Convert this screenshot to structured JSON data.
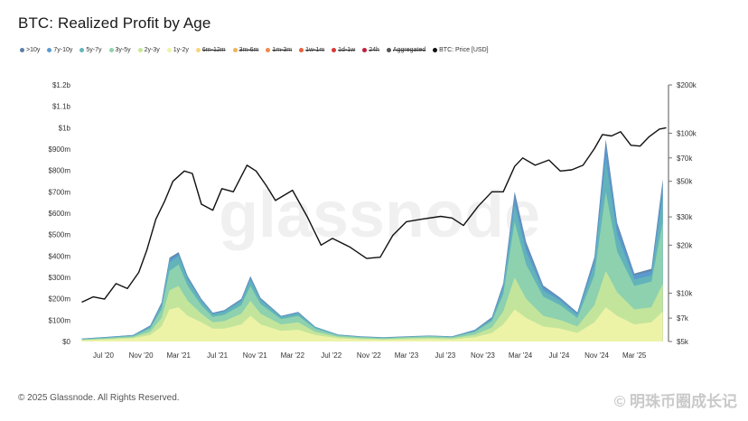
{
  "title": "BTC: Realized Profit by Age",
  "footer": "© 2025 Glassnode. All Rights Reserved.",
  "watermark": "glassnode",
  "watermark_bottom": "© 明珠币圈成长记",
  "legend": [
    {
      "label": ">10y",
      "color": "#5b7fa6",
      "struck": false
    },
    {
      "label": "7y-10y",
      "color": "#5a9bd0",
      "struck": false
    },
    {
      "label": "5y-7y",
      "color": "#64b4b8",
      "struck": false
    },
    {
      "label": "3y-5y",
      "color": "#8fd3ae",
      "struck": false
    },
    {
      "label": "2y-3y",
      "color": "#c6e69a",
      "struck": false
    },
    {
      "label": "1y-2y",
      "color": "#eef3a8",
      "struck": false
    },
    {
      "label": "6m-12m",
      "color": "#f6d57e",
      "struck": true
    },
    {
      "label": "3m-6m",
      "color": "#f2b25a",
      "struck": true
    },
    {
      "label": "1m-3m",
      "color": "#ee8a4a",
      "struck": true
    },
    {
      "label": "1w-1m",
      "color": "#e8603c",
      "struck": true
    },
    {
      "label": "1d-1w",
      "color": "#d93a38",
      "struck": true
    },
    {
      "label": "24h",
      "color": "#c21f3a",
      "struck": true
    },
    {
      "label": "Aggregated",
      "color": "#555555",
      "struck": true
    },
    {
      "label": "BTC: Price [USD]",
      "color": "#111111",
      "struck": false
    }
  ],
  "chart_data": {
    "type": "area",
    "x_ticks": [
      "Jul '20",
      "Nov '20",
      "Mar '21",
      "Jul '21",
      "Nov '21",
      "Mar '22",
      "Jul '22",
      "Nov '22",
      "Mar '23",
      "Jul '23",
      "Nov '23",
      "Mar '24",
      "Jul '24",
      "Nov '24",
      "Mar '25"
    ],
    "y_left_ticks": [
      "$0",
      "$100m",
      "$200m",
      "$300m",
      "$400m",
      "$500m",
      "$600m",
      "$700m",
      "$800m",
      "$900m",
      "$1b",
      "$1.1b",
      "$1.2b"
    ],
    "y_left_range": [
      0,
      1200000000
    ],
    "y_right_ticks": [
      "$5k",
      "$7k",
      "$10k",
      "$20k",
      "$30k",
      "$50k",
      "$70k",
      "$100k",
      "$200k"
    ],
    "y_right_range": [
      5000,
      200000
    ],
    "y_right_scale": "log",
    "x_range_months": [
      2020.33,
      2025.5
    ],
    "series": [
      {
        "name": "1y-2y",
        "color": "#eef3a8",
        "points": [
          [
            2020.35,
            5
          ],
          [
            2020.6,
            10
          ],
          [
            2020.8,
            15
          ],
          [
            2020.95,
            30
          ],
          [
            2021.05,
            70
          ],
          [
            2021.12,
            150
          ],
          [
            2021.2,
            160
          ],
          [
            2021.28,
            120
          ],
          [
            2021.4,
            90
          ],
          [
            2021.5,
            60
          ],
          [
            2021.6,
            60
          ],
          [
            2021.75,
            80
          ],
          [
            2021.83,
            120
          ],
          [
            2021.92,
            80
          ],
          [
            2022.1,
            50
          ],
          [
            2022.25,
            55
          ],
          [
            2022.4,
            30
          ],
          [
            2022.6,
            15
          ],
          [
            2022.8,
            10
          ],
          [
            2023.0,
            8
          ],
          [
            2023.2,
            10
          ],
          [
            2023.4,
            12
          ],
          [
            2023.6,
            10
          ],
          [
            2023.8,
            20
          ],
          [
            2023.95,
            40
          ],
          [
            2024.05,
            80
          ],
          [
            2024.15,
            150
          ],
          [
            2024.25,
            110
          ],
          [
            2024.4,
            70
          ],
          [
            2024.55,
            60
          ],
          [
            2024.7,
            40
          ],
          [
            2024.85,
            90
          ],
          [
            2024.95,
            160
          ],
          [
            2025.05,
            120
          ],
          [
            2025.2,
            80
          ],
          [
            2025.35,
            90
          ],
          [
            2025.45,
            140
          ]
        ]
      },
      {
        "name": "2y-3y",
        "color": "#c6e69a",
        "points": [
          [
            2020.35,
            8
          ],
          [
            2020.6,
            14
          ],
          [
            2020.8,
            20
          ],
          [
            2020.95,
            45
          ],
          [
            2021.05,
            110
          ],
          [
            2021.12,
            240
          ],
          [
            2021.2,
            260
          ],
          [
            2021.28,
            190
          ],
          [
            2021.4,
            130
          ],
          [
            2021.5,
            90
          ],
          [
            2021.6,
            95
          ],
          [
            2021.75,
            130
          ],
          [
            2021.83,
            190
          ],
          [
            2021.92,
            130
          ],
          [
            2022.1,
            80
          ],
          [
            2022.25,
            90
          ],
          [
            2022.4,
            45
          ],
          [
            2022.6,
            22
          ],
          [
            2022.8,
            15
          ],
          [
            2023.0,
            12
          ],
          [
            2023.2,
            16
          ],
          [
            2023.4,
            18
          ],
          [
            2023.6,
            15
          ],
          [
            2023.8,
            32
          ],
          [
            2023.95,
            65
          ],
          [
            2024.05,
            140
          ],
          [
            2024.15,
            300
          ],
          [
            2024.25,
            200
          ],
          [
            2024.4,
            120
          ],
          [
            2024.55,
            100
          ],
          [
            2024.7,
            70
          ],
          [
            2024.85,
            170
          ],
          [
            2024.95,
            330
          ],
          [
            2025.05,
            230
          ],
          [
            2025.2,
            150
          ],
          [
            2025.35,
            160
          ],
          [
            2025.45,
            270
          ]
        ]
      },
      {
        "name": "3y-5y",
        "color": "#8fd3ae",
        "points": [
          [
            2020.35,
            10
          ],
          [
            2020.6,
            18
          ],
          [
            2020.8,
            25
          ],
          [
            2020.95,
            60
          ],
          [
            2021.05,
            150
          ],
          [
            2021.12,
            330
          ],
          [
            2021.2,
            360
          ],
          [
            2021.28,
            260
          ],
          [
            2021.4,
            170
          ],
          [
            2021.5,
            115
          ],
          [
            2021.6,
            125
          ],
          [
            2021.75,
            170
          ],
          [
            2021.83,
            260
          ],
          [
            2021.92,
            175
          ],
          [
            2022.1,
            105
          ],
          [
            2022.25,
            120
          ],
          [
            2022.4,
            60
          ],
          [
            2022.6,
            28
          ],
          [
            2022.8,
            20
          ],
          [
            2023.0,
            16
          ],
          [
            2023.2,
            20
          ],
          [
            2023.4,
            24
          ],
          [
            2023.6,
            20
          ],
          [
            2023.8,
            45
          ],
          [
            2023.95,
            95
          ],
          [
            2024.05,
            220
          ],
          [
            2024.15,
            560
          ],
          [
            2024.25,
            360
          ],
          [
            2024.4,
            210
          ],
          [
            2024.55,
            170
          ],
          [
            2024.7,
            110
          ],
          [
            2024.85,
            310
          ],
          [
            2024.95,
            700
          ],
          [
            2025.05,
            420
          ],
          [
            2025.2,
            260
          ],
          [
            2025.35,
            280
          ],
          [
            2025.45,
            560
          ]
        ]
      },
      {
        "name": "5y-7y",
        "color": "#64b4b8",
        "points": [
          [
            2020.35,
            12
          ],
          [
            2020.6,
            20
          ],
          [
            2020.8,
            28
          ],
          [
            2020.95,
            68
          ],
          [
            2021.05,
            170
          ],
          [
            2021.12,
            370
          ],
          [
            2021.2,
            400
          ],
          [
            2021.28,
            290
          ],
          [
            2021.4,
            190
          ],
          [
            2021.5,
            128
          ],
          [
            2021.6,
            140
          ],
          [
            2021.75,
            190
          ],
          [
            2021.83,
            290
          ],
          [
            2021.92,
            195
          ],
          [
            2022.1,
            115
          ],
          [
            2022.25,
            132
          ],
          [
            2022.4,
            66
          ],
          [
            2022.6,
            31
          ],
          [
            2022.8,
            22
          ],
          [
            2023.0,
            18
          ],
          [
            2023.2,
            22
          ],
          [
            2023.4,
            26
          ],
          [
            2023.6,
            22
          ],
          [
            2023.8,
            50
          ],
          [
            2023.95,
            105
          ],
          [
            2024.05,
            250
          ],
          [
            2024.15,
            640
          ],
          [
            2024.25,
            420
          ],
          [
            2024.4,
            240
          ],
          [
            2024.55,
            190
          ],
          [
            2024.7,
            125
          ],
          [
            2024.85,
            360
          ],
          [
            2024.95,
            850
          ],
          [
            2025.05,
            500
          ],
          [
            2025.2,
            290
          ],
          [
            2025.35,
            310
          ],
          [
            2025.45,
            680
          ]
        ]
      },
      {
        "name": "7y-10y",
        "color": "#5a9bd0",
        "points": [
          [
            2020.35,
            13
          ],
          [
            2020.6,
            22
          ],
          [
            2020.8,
            30
          ],
          [
            2020.95,
            72
          ],
          [
            2021.05,
            178
          ],
          [
            2021.12,
            385
          ],
          [
            2021.2,
            410
          ],
          [
            2021.28,
            300
          ],
          [
            2021.4,
            196
          ],
          [
            2021.5,
            132
          ],
          [
            2021.6,
            144
          ],
          [
            2021.75,
            196
          ],
          [
            2021.83,
            300
          ],
          [
            2021.92,
            200
          ],
          [
            2022.1,
            118
          ],
          [
            2022.25,
            136
          ],
          [
            2022.4,
            68
          ],
          [
            2022.6,
            32
          ],
          [
            2022.8,
            23
          ],
          [
            2023.0,
            19
          ],
          [
            2023.2,
            23
          ],
          [
            2023.4,
            27
          ],
          [
            2023.6,
            23
          ],
          [
            2023.8,
            53
          ],
          [
            2023.95,
            110
          ],
          [
            2024.05,
            265
          ],
          [
            2024.15,
            680
          ],
          [
            2024.25,
            450
          ],
          [
            2024.4,
            255
          ],
          [
            2024.55,
            200
          ],
          [
            2024.7,
            132
          ],
          [
            2024.85,
            385
          ],
          [
            2024.95,
            920
          ],
          [
            2025.05,
            540
          ],
          [
            2025.2,
            310
          ],
          [
            2025.35,
            330
          ],
          [
            2025.45,
            740
          ]
        ]
      },
      {
        "name": ">10y",
        "color": "#5b7fa6",
        "points": [
          [
            2020.35,
            14
          ],
          [
            2020.6,
            23
          ],
          [
            2020.8,
            31
          ],
          [
            2020.95,
            75
          ],
          [
            2021.05,
            182
          ],
          [
            2021.12,
            392
          ],
          [
            2021.2,
            418
          ],
          [
            2021.28,
            305
          ],
          [
            2021.4,
            200
          ],
          [
            2021.5,
            135
          ],
          [
            2021.6,
            147
          ],
          [
            2021.75,
            200
          ],
          [
            2021.83,
            306
          ],
          [
            2021.92,
            204
          ],
          [
            2022.1,
            120
          ],
          [
            2022.25,
            138
          ],
          [
            2022.4,
            69
          ],
          [
            2022.6,
            33
          ],
          [
            2022.8,
            24
          ],
          [
            2023.0,
            20
          ],
          [
            2023.2,
            24
          ],
          [
            2023.4,
            28
          ],
          [
            2023.6,
            24
          ],
          [
            2023.8,
            55
          ],
          [
            2023.95,
            114
          ],
          [
            2024.05,
            272
          ],
          [
            2024.15,
            700
          ],
          [
            2024.25,
            465
          ],
          [
            2024.4,
            262
          ],
          [
            2024.55,
            205
          ],
          [
            2024.7,
            136
          ],
          [
            2024.85,
            395
          ],
          [
            2024.95,
            945
          ],
          [
            2025.05,
            555
          ],
          [
            2025.2,
            318
          ],
          [
            2025.35,
            340
          ],
          [
            2025.45,
            760
          ]
        ]
      },
      {
        "name": "BTC: Price [USD]",
        "color": "#111111",
        "points": [
          [
            2020.35,
            8800
          ],
          [
            2020.45,
            9500
          ],
          [
            2020.55,
            9200
          ],
          [
            2020.65,
            11500
          ],
          [
            2020.75,
            10700
          ],
          [
            2020.85,
            13500
          ],
          [
            2020.92,
            18500
          ],
          [
            2021.0,
            29000
          ],
          [
            2021.08,
            38000
          ],
          [
            2021.15,
            50000
          ],
          [
            2021.25,
            58000
          ],
          [
            2021.32,
            56000
          ],
          [
            2021.4,
            36000
          ],
          [
            2021.5,
            33000
          ],
          [
            2021.58,
            45000
          ],
          [
            2021.68,
            43000
          ],
          [
            2021.8,
            63000
          ],
          [
            2021.88,
            58000
          ],
          [
            2021.97,
            47000
          ],
          [
            2022.05,
            38000
          ],
          [
            2022.2,
            44000
          ],
          [
            2022.33,
            30000
          ],
          [
            2022.45,
            20000
          ],
          [
            2022.55,
            22000
          ],
          [
            2022.7,
            19500
          ],
          [
            2022.85,
            16500
          ],
          [
            2022.97,
            16800
          ],
          [
            2023.08,
            23000
          ],
          [
            2023.2,
            28000
          ],
          [
            2023.33,
            29000
          ],
          [
            2023.5,
            30200
          ],
          [
            2023.6,
            29500
          ],
          [
            2023.7,
            26500
          ],
          [
            2023.83,
            35000
          ],
          [
            2023.95,
            43000
          ],
          [
            2024.05,
            43000
          ],
          [
            2024.15,
            62000
          ],
          [
            2024.22,
            70000
          ],
          [
            2024.33,
            63000
          ],
          [
            2024.45,
            68000
          ],
          [
            2024.55,
            58000
          ],
          [
            2024.65,
            59000
          ],
          [
            2024.75,
            63000
          ],
          [
            2024.85,
            80000
          ],
          [
            2024.92,
            98000
          ],
          [
            2025.0,
            96000
          ],
          [
            2025.08,
            102000
          ],
          [
            2025.17,
            84000
          ],
          [
            2025.25,
            83000
          ],
          [
            2025.33,
            95000
          ],
          [
            2025.42,
            106000
          ],
          [
            2025.48,
            108000
          ]
        ]
      }
    ]
  }
}
